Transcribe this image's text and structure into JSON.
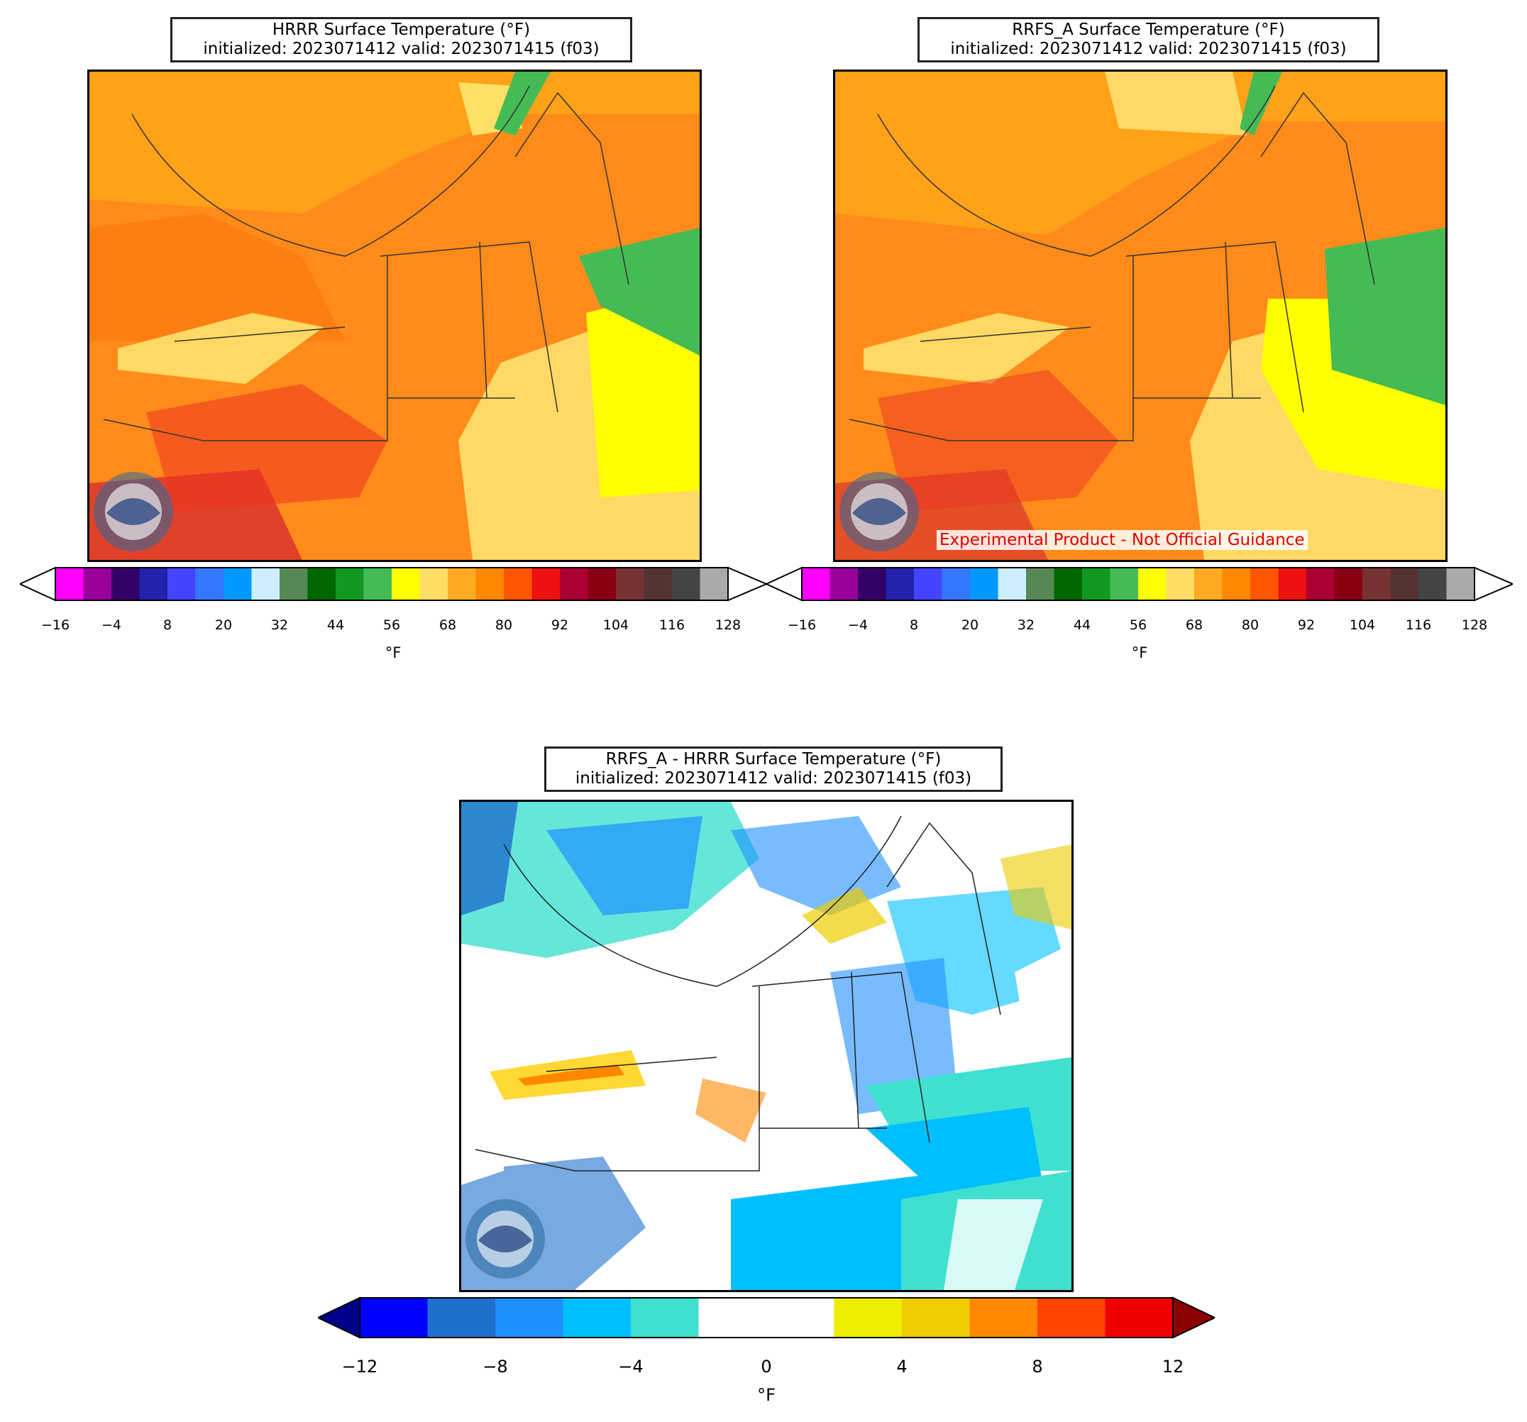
{
  "panels": {
    "hrrr": {
      "title_line1": "HRRR Surface Temperature (°F)",
      "title_line2": "initialized: 2023071412 valid: 2023071415 (f03)"
    },
    "rrfs": {
      "title_line1": "RRFS_A Surface Temperature (°F)",
      "title_line2": "initialized: 2023071412 valid: 2023071415 (f03)",
      "watermark": "Experimental Product - Not Official Guidance"
    },
    "diff": {
      "title_line1": "RRFS_A - HRRR Surface Temperature (°F)",
      "title_line2": "initialized: 2023071412 valid: 2023071415 (f03)"
    }
  },
  "temp_colorbar": {
    "unit": "°F",
    "ticks": [
      "−16",
      "−4",
      "8",
      "20",
      "32",
      "44",
      "56",
      "68",
      "80",
      "92",
      "104",
      "116",
      "128"
    ],
    "colors": [
      "#ff00ff",
      "#990099",
      "#330066",
      "#2222aa",
      "#4444ff",
      "#3377ff",
      "#0099ff",
      "#cceeff",
      "#558855",
      "#006600",
      "#119922",
      "#44bb55",
      "#ffff00",
      "#ffdd66",
      "#ffaa22",
      "#ff8800",
      "#ff5500",
      "#ee1111",
      "#aa0033",
      "#880011",
      "#773333",
      "#553333",
      "#444444",
      "#aaaaaa"
    ],
    "extend_low": "#ffffff",
    "extend_high": "#ffffff"
  },
  "diff_colorbar": {
    "unit": "°F",
    "ticks": [
      "−12",
      "−8",
      "−4",
      "0",
      "4",
      "8",
      "12"
    ],
    "colors": [
      "#0000ff",
      "#1e6fcc",
      "#1e90ff",
      "#00bfff",
      "#40e0d0",
      "#ffffff",
      "#ffffff",
      "#eeee00",
      "#eecc00",
      "#ff8800",
      "#ff4500",
      "#ee0000"
    ],
    "extend_low": "#00008b",
    "extend_high": "#8b0000"
  },
  "logo_text": "NOAA"
}
